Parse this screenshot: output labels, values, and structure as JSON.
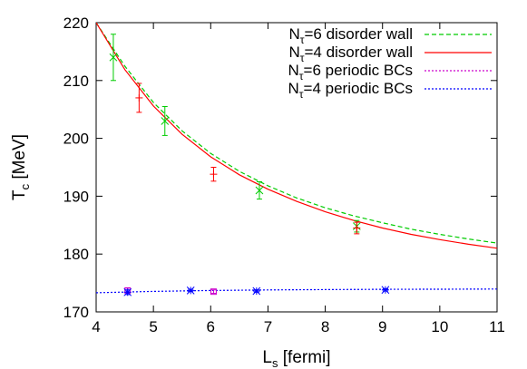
{
  "chart_data": {
    "type": "scatter",
    "title": "",
    "xlabel": {
      "main": "L",
      "sub": "s",
      "rest": " [fermi]"
    },
    "ylabel": {
      "main": "T",
      "sub": "c",
      "rest": " [MeV]"
    },
    "xlim": [
      4,
      11
    ],
    "ylim": [
      170,
      220
    ],
    "xticks": [
      "4",
      "5",
      "6",
      "7",
      "8",
      "9",
      "10",
      "11"
    ],
    "yticks": [
      "170",
      "180",
      "190",
      "200",
      "210",
      "220"
    ],
    "grid": false,
    "legend_position": "top-right",
    "series": [
      {
        "name": {
          "pre": "N",
          "sub": "τ",
          "post": "=6 disorder wall"
        },
        "color": "#00cc00",
        "line_style": "dashed",
        "marker": "x",
        "fit_curve": [
          [
            4.0,
            220.0
          ],
          [
            4.5,
            212.5
          ],
          [
            5.0,
            206.2
          ],
          [
            5.5,
            201.3
          ],
          [
            6.0,
            197.4
          ],
          [
            6.5,
            194.3
          ],
          [
            7.0,
            191.8
          ],
          [
            7.5,
            189.7
          ],
          [
            8.0,
            188.0
          ],
          [
            8.5,
            186.6
          ],
          [
            9.0,
            185.4
          ],
          [
            9.5,
            184.3
          ],
          [
            10.0,
            183.4
          ],
          [
            10.5,
            182.6
          ],
          [
            11.0,
            181.9
          ]
        ],
        "points": [
          {
            "x": 4.3,
            "y": 214.0,
            "err": 4.0
          },
          {
            "x": 5.2,
            "y": 203.0,
            "err": 2.5
          },
          {
            "x": 6.85,
            "y": 191.0,
            "err": 1.5
          },
          {
            "x": 8.55,
            "y": 184.8,
            "err": 1.0
          }
        ]
      },
      {
        "name": {
          "pre": "N",
          "sub": "τ",
          "post": "=4 disorder wall"
        },
        "color": "#ff0000",
        "line_style": "solid",
        "marker": "plus",
        "fit_curve": [
          [
            4.0,
            220.0
          ],
          [
            4.5,
            211.9
          ],
          [
            5.0,
            205.6
          ],
          [
            5.5,
            200.7
          ],
          [
            6.0,
            196.8
          ],
          [
            6.5,
            193.7
          ],
          [
            7.0,
            191.2
          ],
          [
            7.5,
            189.1
          ],
          [
            8.0,
            187.3
          ],
          [
            8.5,
            185.8
          ],
          [
            9.0,
            184.5
          ],
          [
            9.5,
            183.4
          ],
          [
            10.0,
            182.5
          ],
          [
            10.5,
            181.7
          ],
          [
            11.0,
            181.0
          ]
        ],
        "points": [
          {
            "x": 4.75,
            "y": 207.0,
            "err": 2.5
          },
          {
            "x": 6.05,
            "y": 193.8,
            "err": 1.2
          },
          {
            "x": 8.55,
            "y": 184.5,
            "err": 1.0
          }
        ]
      },
      {
        "name": {
          "pre": "N",
          "sub": "τ",
          "post": "=6  periodic BCs"
        },
        "color": "#cc00cc",
        "line_style": "dotted",
        "marker": "square",
        "fit_curve": [],
        "points": [
          {
            "x": 4.55,
            "y": 173.7,
            "err": 0.4
          },
          {
            "x": 6.05,
            "y": 173.5,
            "err": 0.3
          }
        ]
      },
      {
        "name": {
          "pre": "N",
          "sub": "τ",
          "post": "=4  periodic BCs"
        },
        "color": "#0000ff",
        "line_style": "dotted",
        "marker": "star",
        "fit_curve": [
          [
            4.0,
            173.3
          ],
          [
            5.0,
            173.55
          ],
          [
            6.0,
            173.7
          ],
          [
            7.0,
            173.8
          ],
          [
            8.0,
            173.85
          ],
          [
            9.0,
            173.9
          ],
          [
            10.0,
            173.92
          ],
          [
            11.0,
            173.95
          ]
        ],
        "points": [
          {
            "x": 4.55,
            "y": 173.4,
            "err": 0.4
          },
          {
            "x": 5.65,
            "y": 173.7,
            "err": 0.2
          },
          {
            "x": 6.8,
            "y": 173.6,
            "err": 0.2
          },
          {
            "x": 9.05,
            "y": 173.8,
            "err": 0.2
          }
        ]
      }
    ]
  }
}
